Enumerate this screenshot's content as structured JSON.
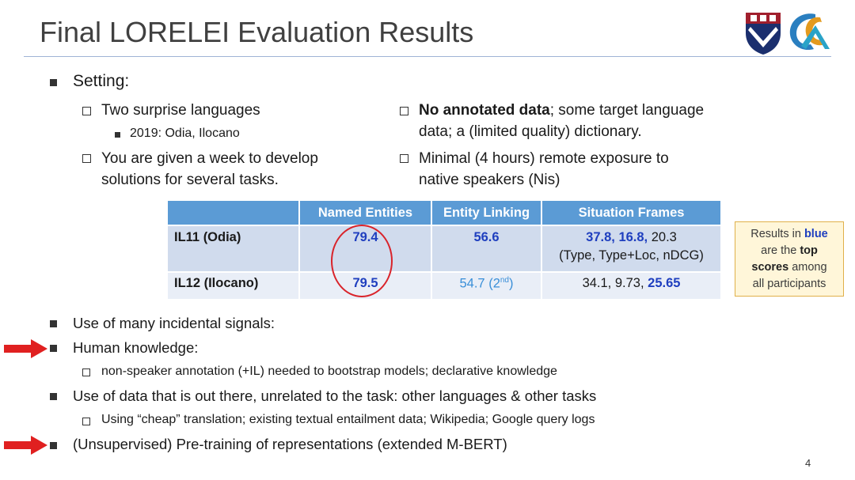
{
  "title": "Final LORELEI Evaluation Results",
  "setting": {
    "heading": "Setting:",
    "left": [
      {
        "text": "Two surprise languages",
        "sub": "2019: Odia, Ilocano"
      },
      {
        "lines": [
          "You are given a week to develop",
          "solutions for several tasks."
        ]
      }
    ],
    "right": [
      {
        "bold": "No annotated data",
        "rest": "; some target language",
        "line2": "data; a (limited quality) dictionary."
      },
      {
        "lines": [
          "Minimal (4 hours) remote exposure to",
          "native speakers (Nis)"
        ]
      }
    ]
  },
  "table": {
    "headers": [
      "",
      "Named Entities",
      "Entity Linking",
      "Situation Frames"
    ],
    "rows": [
      {
        "label": "IL11 (Odia)",
        "ne": "79.4",
        "el": "56.6",
        "sf_blue": "37.8, 16.8,",
        "sf_rest": " 20.3",
        "sf_note": "(Type, Type+Loc, nDCG)"
      },
      {
        "label": "IL12 (Ilocano)",
        "ne": "79.5",
        "el_main": "54.7 (2",
        "el_sup": "nd",
        "el_end": ")",
        "sf_plain": "34.1, 9.73, ",
        "sf_blue": "25.65"
      }
    ]
  },
  "callout": {
    "l1a": "Results in ",
    "l1b": "blue",
    "l2a": "are the ",
    "l2b": "top",
    "l3a": "scores",
    "l3b": " among",
    "l4": "all participants"
  },
  "bullets": {
    "b1": "Use of many incidental signals:",
    "b2": "Human knowledge:",
    "b2sub": "non-speaker annotation (+IL) needed to bootstrap models; declarative knowledge",
    "b3": "Use of data that is out there, unrelated to the task: other languages & other tasks",
    "b3sub": "Using “cheap” translation; existing textual entailment data; Wikipedia; Google query logs",
    "b4": "(Unsupervised) Pre-training of representations (extended M-BERT)"
  },
  "page_number": "4",
  "colors": {
    "accent_blue": "#1f3fbf",
    "light_blue": "#3a8fd8",
    "header_blue": "#5b9bd5",
    "arrow_red": "#e02020"
  }
}
